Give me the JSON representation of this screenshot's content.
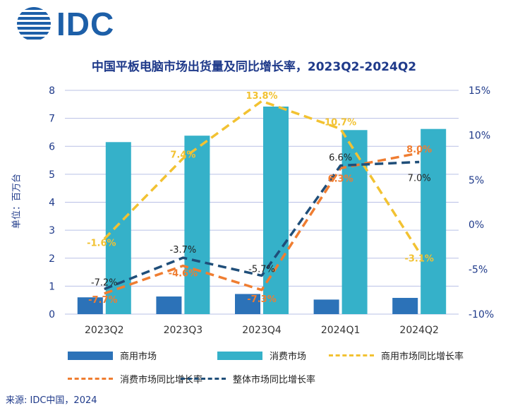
{
  "logo": {
    "text": "IDC"
  },
  "chart_data": {
    "type": "bar+line",
    "title": "中国平板电脑市场出货量及同比增长率，2023Q2-2024Q2",
    "ylabel": "单位：百万台",
    "categories": [
      "2023Q2",
      "2023Q3",
      "2023Q4",
      "2024Q1",
      "2024Q2"
    ],
    "ylim_left": [
      0,
      8
    ],
    "yticks_left": [
      "0",
      "1",
      "2",
      "3",
      "4",
      "5",
      "6",
      "7",
      "8"
    ],
    "ylim_right": [
      -10,
      15
    ],
    "yticks_right": [
      "-10%",
      "-5%",
      "0%",
      "5%",
      "10%",
      "15%"
    ],
    "bar_series": [
      {
        "name": "商用市场",
        "color": "#2c72b8",
        "values": [
          0.6,
          0.63,
          0.72,
          0.52,
          0.58
        ]
      },
      {
        "name": "消费市场",
        "color": "#35b1c9",
        "values": [
          6.15,
          6.38,
          7.42,
          6.58,
          6.62
        ]
      }
    ],
    "line_series": [
      {
        "name": "商用市场同比增长率",
        "color": "#f2c232",
        "values": [
          -1.6,
          7.4,
          13.8,
          10.7,
          -3.1
        ],
        "labels": [
          "-1.6%",
          "7.4%",
          "13.8%",
          "10.7%",
          "-3.1%"
        ],
        "label_color": "#f2c232"
      },
      {
        "name": "消费市场同比增长率",
        "color": "#ef7d31",
        "values": [
          -7.7,
          -4.6,
          -7.3,
          6.3,
          8.0
        ],
        "labels": [
          "-7.7%",
          "-4.6%",
          "-7.3%",
          "6.3%",
          "8.0%"
        ],
        "label_color": "#ef7d31"
      },
      {
        "name": "整体市场同比增长率",
        "color": "#1f4e79",
        "values": [
          -7.2,
          -3.7,
          -5.7,
          6.6,
          7.0
        ],
        "labels": [
          "-7.2%",
          "-3.7%",
          "-5.7%",
          "6.6%",
          "7.0%"
        ],
        "label_color": "#222222"
      }
    ],
    "legend": [
      "商用市场",
      "消费市场",
      "商用市场同比增长率",
      "消费市场同比增长率",
      "整体市场同比增长率"
    ]
  },
  "source": "来源: IDC中国，2024"
}
